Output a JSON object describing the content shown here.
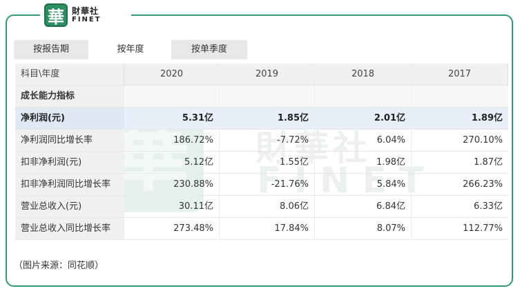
{
  "logo": {
    "mark": "華",
    "cn": "財華社",
    "en": "FINET"
  },
  "tabs": [
    {
      "label": "按报告期"
    },
    {
      "label": "按年度"
    },
    {
      "label": "按单季度"
    }
  ],
  "table": {
    "header": [
      "科目\\年度",
      "2020",
      "2019",
      "2018",
      "2017"
    ],
    "section": "成长能力指标",
    "rows": [
      {
        "label": "净利润(元)",
        "values": [
          "5.31亿",
          "1.85亿",
          "2.01亿",
          "1.89亿"
        ]
      },
      {
        "label": "净利润同比增长率",
        "values": [
          "186.72%",
          "-7.72%",
          "6.04%",
          "270.10%"
        ]
      },
      {
        "label": "扣非净利润(元)",
        "values": [
          "5.12亿",
          "1.55亿",
          "1.98亿",
          "1.87亿"
        ]
      },
      {
        "label": "扣非净利润同比增长率",
        "values": [
          "230.88%",
          "-21.76%",
          "5.84%",
          "266.23%"
        ]
      },
      {
        "label": "营业总收入(元)",
        "values": [
          "30.11亿",
          "8.06亿",
          "6.84亿",
          "6.33亿"
        ]
      },
      {
        "label": "营业总收入同比增长率",
        "values": [
          "273.48%",
          "17.84%",
          "8.07%",
          "112.77%"
        ]
      }
    ]
  },
  "watermark": {
    "mark": "華",
    "cn": "財華社",
    "en": "FINET"
  },
  "source": "（图片来源：同花顺）"
}
